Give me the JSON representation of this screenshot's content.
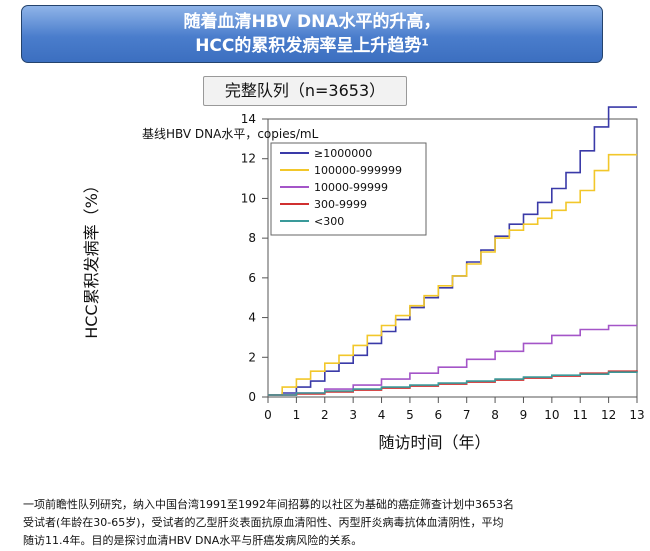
{
  "banner": {
    "line1": "随着血清HBV DNA水平的升高，",
    "line2": "HCC的累积发病率呈上升趋势¹"
  },
  "cohort_label": "完整队列（n=3653）",
  "footnote": [
    "一项前瞻性队列研究，纳入中国台湾1991至1992年间招募的以社区为基础的癌症筛查计划中3653名",
    "受试者(年龄在30-65岁)，受试者的乙型肝炎表面抗原血清阳性、丙型肝炎病毒抗体血清阴性，平均",
    "随访11.4年。目的是探讨血清HBV  DNA水平与肝癌发病风险的关系。"
  ],
  "chart_data": {
    "type": "line",
    "title": "",
    "xlabel": "随访时间（年）",
    "ylabel": "HCC累积发病率（%）",
    "xlim": [
      0,
      13
    ],
    "ylim": [
      0,
      14
    ],
    "xticks": [
      0,
      1,
      2,
      3,
      4,
      5,
      6,
      7,
      8,
      9,
      10,
      11,
      12,
      13
    ],
    "yticks": [
      0,
      2,
      4,
      6,
      8,
      10,
      12,
      14
    ],
    "legend": {
      "title": "基线HBV DNA水平，copies/mL",
      "placement": "top-left inside"
    },
    "grid": false,
    "series": [
      {
        "name": "≥1000000",
        "color": "#3a3aa8",
        "x": [
          0,
          0.5,
          1,
          1.5,
          2,
          2.5,
          3,
          3.5,
          4,
          4.5,
          5,
          5.5,
          6,
          6.5,
          7,
          7.5,
          8,
          8.5,
          9,
          9.5,
          10,
          10.5,
          11,
          11.5,
          12,
          13
        ],
        "y": [
          0.1,
          0.2,
          0.5,
          0.8,
          1.3,
          1.7,
          2.1,
          2.7,
          3.3,
          3.9,
          4.5,
          5.0,
          5.5,
          6.1,
          6.8,
          7.4,
          8.1,
          8.7,
          9.2,
          9.8,
          10.5,
          11.3,
          12.4,
          13.6,
          14.6,
          14.6
        ]
      },
      {
        "name": "100000-999999",
        "color": "#f2c72a",
        "x": [
          0,
          0.5,
          1,
          1.5,
          2,
          2.5,
          3,
          3.5,
          4,
          4.5,
          5,
          5.5,
          6,
          6.5,
          7,
          7.5,
          8,
          8.5,
          9,
          9.5,
          10,
          10.5,
          11,
          11.5,
          12,
          13
        ],
        "y": [
          0.1,
          0.5,
          0.9,
          1.3,
          1.7,
          2.1,
          2.6,
          3.1,
          3.6,
          4.1,
          4.6,
          5.1,
          5.6,
          6.1,
          6.7,
          7.3,
          8.0,
          8.4,
          8.7,
          9.0,
          9.4,
          9.8,
          10.4,
          11.4,
          12.2,
          12.2
        ]
      },
      {
        "name": "10000-99999",
        "color": "#a455c8",
        "x": [
          0,
          1,
          2,
          3,
          4,
          5,
          6,
          7,
          8,
          9,
          10,
          11,
          12,
          13
        ],
        "y": [
          0.1,
          0.2,
          0.4,
          0.6,
          0.9,
          1.2,
          1.5,
          1.9,
          2.3,
          2.7,
          3.1,
          3.4,
          3.6,
          3.6
        ]
      },
      {
        "name": "300-9999",
        "color": "#d03030",
        "x": [
          0,
          1,
          2,
          3,
          4,
          5,
          6,
          7,
          8,
          9,
          10,
          11,
          12,
          13
        ],
        "y": [
          0.1,
          0.15,
          0.25,
          0.35,
          0.45,
          0.55,
          0.65,
          0.75,
          0.85,
          0.95,
          1.05,
          1.2,
          1.3,
          1.35
        ]
      },
      {
        "name": "<300",
        "color": "#3a9a9a",
        "x": [
          0,
          1,
          2,
          3,
          4,
          5,
          6,
          7,
          8,
          9,
          10,
          11,
          12,
          13
        ],
        "y": [
          0.1,
          0.2,
          0.3,
          0.4,
          0.5,
          0.6,
          0.7,
          0.8,
          0.9,
          1.0,
          1.1,
          1.15,
          1.25,
          1.3
        ]
      }
    ]
  }
}
